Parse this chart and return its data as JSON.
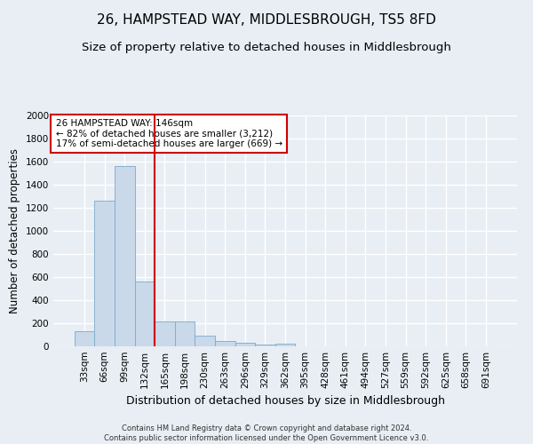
{
  "title": "26, HAMPSTEAD WAY, MIDDLESBROUGH, TS5 8FD",
  "subtitle": "Size of property relative to detached houses in Middlesbrough",
  "xlabel": "Distribution of detached houses by size in Middlesbrough",
  "ylabel": "Number of detached properties",
  "footer_line1": "Contains HM Land Registry data © Crown copyright and database right 2024.",
  "footer_line2": "Contains public sector information licensed under the Open Government Licence v3.0.",
  "categories": [
    "33sqm",
    "66sqm",
    "99sqm",
    "132sqm",
    "165sqm",
    "198sqm",
    "230sqm",
    "263sqm",
    "296sqm",
    "329sqm",
    "362sqm",
    "395sqm",
    "428sqm",
    "461sqm",
    "494sqm",
    "527sqm",
    "559sqm",
    "592sqm",
    "625sqm",
    "658sqm",
    "691sqm"
  ],
  "values": [
    130,
    1265,
    1560,
    560,
    215,
    215,
    95,
    50,
    30,
    18,
    20,
    0,
    0,
    0,
    0,
    0,
    0,
    0,
    0,
    0,
    0
  ],
  "bar_color": "#c9d9ea",
  "bar_edge_color": "#7aaac8",
  "ylim": [
    0,
    2000
  ],
  "yticks": [
    0,
    200,
    400,
    600,
    800,
    1000,
    1200,
    1400,
    1600,
    1800,
    2000
  ],
  "annotation_line1": "26 HAMPSTEAD WAY: 146sqm",
  "annotation_line2": "← 82% of detached houses are smaller (3,212)",
  "annotation_line3": "17% of semi-detached houses are larger (669) →",
  "vline_x_index": 3.5,
  "annotation_box_facecolor": "#ffffff",
  "annotation_box_edgecolor": "#cc0000",
  "vline_color": "#cc0000",
  "bg_color": "#e8eef4",
  "grid_color": "#ffffff",
  "title_fontsize": 11,
  "subtitle_fontsize": 9.5,
  "tick_fontsize": 7.5,
  "ylabel_fontsize": 8.5,
  "xlabel_fontsize": 9,
  "annotation_fontsize": 7.5,
  "footer_fontsize": 6
}
